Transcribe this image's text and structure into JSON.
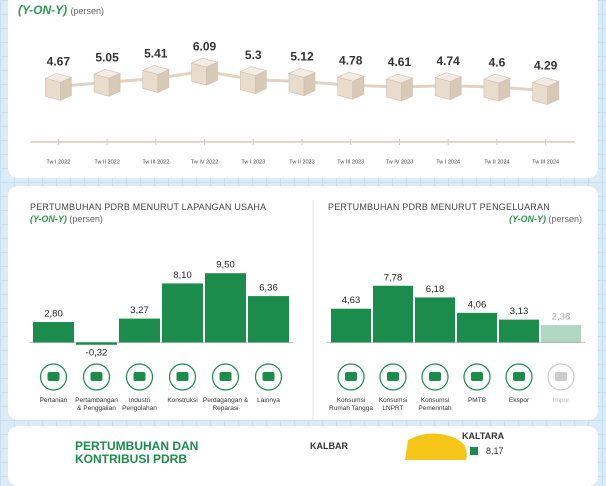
{
  "header": {
    "subtitle": "(Y-ON-Y)",
    "unit": "(persen)"
  },
  "chart_data": [
    {
      "type": "line",
      "categories": [
        "Tw I 2022",
        "Tw II 2022",
        "Tw III 2022",
        "Tw IV 2022",
        "Tw I 2023",
        "Tw II 2023",
        "Tw III 2023",
        "Tw IV 2023",
        "Tw I 2024",
        "Tw II 2024",
        "Tw III 2024"
      ],
      "values": [
        4.67,
        5.05,
        5.41,
        6.09,
        5.3,
        5.12,
        4.78,
        4.61,
        4.74,
        4.6,
        4.29
      ],
      "color": "#e9dccd",
      "ylim": [
        2,
        9
      ]
    },
    {
      "type": "bar",
      "title": "PERTUMBUHAN PDRB MENURUT LAPANGAN USAHA",
      "subtitle": "(Y-ON-Y)",
      "unit": "(persen)",
      "categories": [
        "Pertanian",
        "Pertambangan & Penggalian",
        "Industri Pengolahan",
        "Konstruksi",
        "Perdagangan & Reparasi",
        "Lainnya"
      ],
      "values": [
        2.8,
        -0.32,
        3.27,
        8.1,
        9.5,
        6.36
      ],
      "value_labels": [
        "2,80",
        "-0,32",
        "3,27",
        "8,10",
        "9,50",
        "6,36"
      ],
      "color": "#1c8c4c",
      "ylim": [
        -2,
        12
      ]
    },
    {
      "type": "bar",
      "title": "PERTUMBUHAN PDRB MENURUT PENGELUARAN",
      "subtitle": "(Y-ON-Y)",
      "unit": "(persen)",
      "categories": [
        "Konsumsi Rumah Tangga",
        "Konsumsi LNPRT",
        "Konsumsi Pemerintah",
        "PMTB",
        "Ekspor",
        "Impor"
      ],
      "values": [
        4.63,
        7.78,
        6.18,
        4.06,
        3.13,
        2.38
      ],
      "value_labels": [
        "4,63",
        "7,78",
        "6,18",
        "4,06",
        "3,13",
        "2,38"
      ],
      "color": "#1c8c4c",
      "ylim": [
        -2,
        12
      ]
    }
  ],
  "footer": {
    "title_lines": [
      "PERTUMBUHAN DAN",
      "KONTRIBUSI PDRB"
    ],
    "left_region": "KALBAR",
    "right_region": "KALTARA",
    "right_value": "8,17"
  }
}
